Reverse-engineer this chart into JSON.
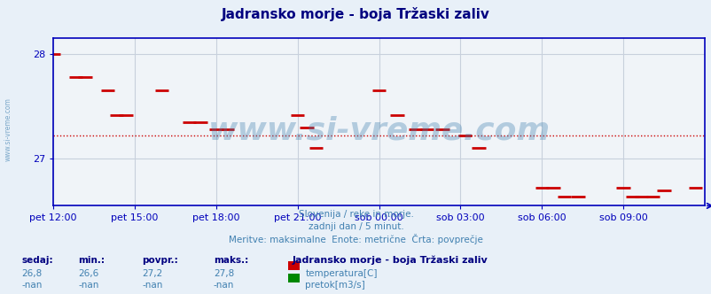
{
  "title": "Jadransko morje - boja Tržaski zaliv",
  "title_color": "#000080",
  "background_color": "#e8f0f8",
  "plot_bg_color": "#f0f4f8",
  "ylim": [
    26.55,
    28.15
  ],
  "ytick_positions": [
    27.0,
    28.0
  ],
  "ytick_labels": [
    "27",
    "28"
  ],
  "y_avg": 27.22,
  "xmin": 0,
  "xmax": 288,
  "xtick_positions": [
    0,
    36,
    72,
    108,
    144,
    180,
    216,
    252
  ],
  "xtick_labels": [
    "pet 12:00",
    "pet 15:00",
    "pet 18:00",
    "pet 21:00",
    "sob 00:00",
    "sob 03:00",
    "sob 06:00",
    "sob 09:00"
  ],
  "grid_color": "#c8d0dc",
  "avg_line_color": "#cc0000",
  "axis_color": "#0000bb",
  "tick_color": "#0000bb",
  "watermark": "www.si-vreme.com",
  "watermark_color": "#4080b0",
  "watermark_alpha": 0.35,
  "side_label": "www.si-vreme.com",
  "sub1": "Slovenija / reke in morje.",
  "sub2": "zadnji dan / 5 minut.",
  "sub3": "Meritve: maksimalne  Enote: metrične  Črta: povprečje",
  "sub_color": "#4080b0",
  "legend_title": "Jadransko morje - boja Tržaski zaliv",
  "legend_title_color": "#000080",
  "stats_labels": [
    "sedaj:",
    "min.:",
    "povpr.:",
    "maks.:"
  ],
  "stats_temp": [
    "26,8",
    "26,6",
    "27,2",
    "27,8"
  ],
  "stats_pretok": [
    "-nan",
    "-nan",
    "-nan",
    "-nan"
  ],
  "stats_label_color": "#000080",
  "stats_val_color": "#4080b0",
  "temp_color": "#cc0000",
  "pretok_color": "#008800",
  "temp_label": "temperatura[C]",
  "pretok_label": "pretok[m3/s]",
  "label_color": "#4080b0",
  "temp_points": [
    [
      0,
      28.0
    ],
    [
      10,
      27.78
    ],
    [
      14,
      27.78
    ],
    [
      24,
      27.65
    ],
    [
      28,
      27.42
    ],
    [
      32,
      27.42
    ],
    [
      48,
      27.65
    ],
    [
      60,
      27.35
    ],
    [
      65,
      27.35
    ],
    [
      72,
      27.28
    ],
    [
      77,
      27.28
    ],
    [
      108,
      27.42
    ],
    [
      112,
      27.3
    ],
    [
      116,
      27.1
    ],
    [
      144,
      27.65
    ],
    [
      152,
      27.42
    ],
    [
      160,
      27.28
    ],
    [
      165,
      27.28
    ],
    [
      172,
      27.28
    ],
    [
      182,
      27.22
    ],
    [
      188,
      27.1
    ],
    [
      216,
      26.72
    ],
    [
      221,
      26.72
    ],
    [
      226,
      26.64
    ],
    [
      232,
      26.64
    ],
    [
      252,
      26.72
    ],
    [
      256,
      26.64
    ],
    [
      260,
      26.64
    ],
    [
      265,
      26.64
    ],
    [
      270,
      26.7
    ],
    [
      284,
      26.72
    ]
  ]
}
